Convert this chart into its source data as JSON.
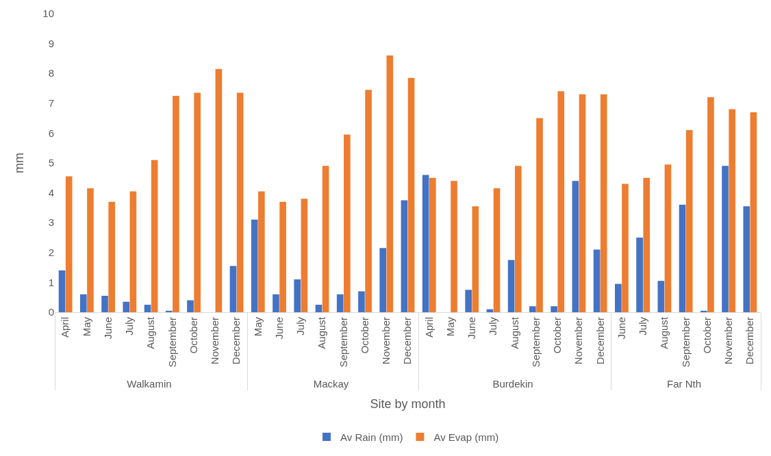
{
  "chart_data": {
    "type": "bar",
    "xlabel": "Site by month",
    "ylabel": "mm",
    "categories": [
      "April",
      "May",
      "June",
      "July",
      "August",
      "September",
      "October",
      "November",
      "December",
      "May",
      "June",
      "July",
      "August",
      "September",
      "October",
      "November",
      "December",
      "April",
      "May",
      "June",
      "July",
      "August",
      "September",
      "October",
      "November",
      "December",
      "June",
      "July",
      "August",
      "September",
      "October",
      "November",
      "December"
    ],
    "annotations": [
      "Walkamin",
      "Mackay",
      "Burdekin",
      "Far Nth"
    ],
    "series": [
      {
        "name": "Av Rain (mm)",
        "color": "#4472c4",
        "values": [
          1.4,
          0.6,
          0.55,
          0.35,
          0.25,
          0.05,
          0.4,
          0,
          1.55,
          3.1,
          0.6,
          1.1,
          0.25,
          0.6,
          0.7,
          2.15,
          3.75,
          4.6,
          0,
          0.75,
          0.1,
          1.75,
          0.2,
          0.2,
          4.4,
          2.1,
          0.95,
          2.5,
          1.05,
          3.6,
          0.05,
          4.9,
          3.55
        ]
      },
      {
        "name": "Av Evap (mm)",
        "color": "#ed7d31",
        "values": [
          4.55,
          4.15,
          3.7,
          4.05,
          5.1,
          7.25,
          7.35,
          8.15,
          7.35,
          4.05,
          3.7,
          3.8,
          4.9,
          5.95,
          7.45,
          8.6,
          7.85,
          4.5,
          4.4,
          3.55,
          4.15,
          4.9,
          6.5,
          7.4,
          7.3,
          7.3,
          4.3,
          4.5,
          4.95,
          6.1,
          7.2,
          6.8,
          6.7
        ]
      }
    ],
    "ylim": [
      0,
      10
    ],
    "yticks": [
      0,
      1,
      2,
      3,
      4,
      5,
      6,
      7,
      8,
      9,
      10
    ],
    "grid": false,
    "legend": "bottom"
  }
}
